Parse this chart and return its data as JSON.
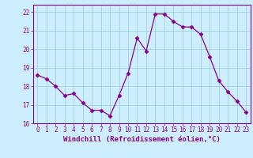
{
  "x": [
    0,
    1,
    2,
    3,
    4,
    5,
    6,
    7,
    8,
    9,
    10,
    11,
    12,
    13,
    14,
    15,
    16,
    17,
    18,
    19,
    20,
    21,
    22,
    23
  ],
  "y": [
    18.6,
    18.4,
    18.0,
    17.5,
    17.6,
    17.1,
    16.7,
    16.7,
    16.4,
    17.5,
    18.7,
    20.6,
    19.9,
    21.9,
    21.9,
    21.5,
    21.2,
    21.2,
    20.8,
    19.6,
    18.3,
    17.7,
    17.2,
    16.6
  ],
  "line_color": "#880088",
  "marker": "D",
  "marker_size": 2.5,
  "bg_color": "#cceeff",
  "grid_color": "#99cccc",
  "xlabel": "Windchill (Refroidissement éolien,°C)",
  "xlim": [
    -0.5,
    23.5
  ],
  "ylim": [
    16,
    22.4
  ],
  "yticks": [
    16,
    17,
    18,
    19,
    20,
    21,
    22
  ],
  "xticks": [
    0,
    1,
    2,
    3,
    4,
    5,
    6,
    7,
    8,
    9,
    10,
    11,
    12,
    13,
    14,
    15,
    16,
    17,
    18,
    19,
    20,
    21,
    22,
    23
  ],
  "tick_fontsize": 5.5,
  "xlabel_fontsize": 6.5
}
